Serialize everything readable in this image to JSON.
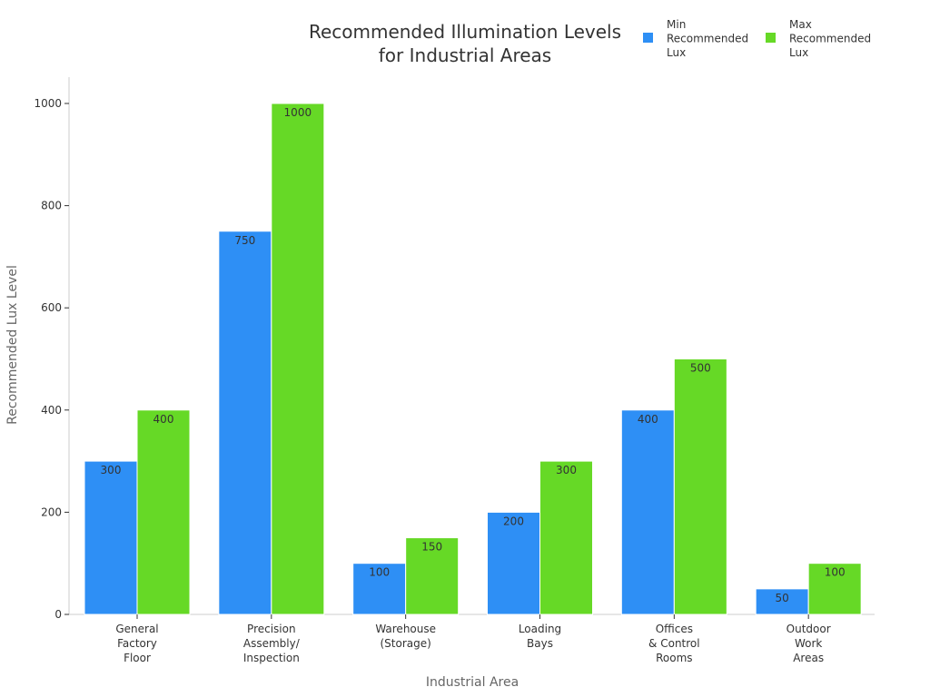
{
  "chart_data": {
    "type": "bar",
    "title": "Recommended Illumination Levels for Industrial Areas",
    "title_lines": [
      "Recommended Illumination Levels",
      "for Industrial Areas"
    ],
    "xlabel": "Industrial Area",
    "ylabel": "Recommended Lux Level",
    "ylim": [
      0,
      1050
    ],
    "yticks": [
      0,
      200,
      400,
      600,
      800,
      1000
    ],
    "grid": false,
    "legend_position": "top-right",
    "categories": [
      "General Factory Floor",
      "Precision Assembly/ Inspection",
      "Warehouse (Storage)",
      "Loading Bays",
      "Offices & Control Rooms",
      "Outdoor Work Areas"
    ],
    "category_lines": [
      [
        "General",
        "Factory",
        "Floor"
      ],
      [
        "Precision",
        "Assembly/",
        "Inspection"
      ],
      [
        "Warehouse",
        "(Storage)"
      ],
      [
        "Loading",
        "Bays"
      ],
      [
        "Offices",
        "& Control",
        "Rooms"
      ],
      [
        "Outdoor",
        "Work",
        "Areas"
      ]
    ],
    "series": [
      {
        "name": "Min Recommended Lux",
        "name_lines": [
          "Min",
          "Recommended",
          "Lux"
        ],
        "color": "#2e8ff5",
        "values": [
          300,
          750,
          100,
          200,
          400,
          50
        ]
      },
      {
        "name": "Max Recommended Lux",
        "name_lines": [
          "Max",
          "Recommended",
          "Lux"
        ],
        "color": "#66d926",
        "values": [
          400,
          1000,
          150,
          300,
          500,
          100
        ]
      }
    ]
  }
}
